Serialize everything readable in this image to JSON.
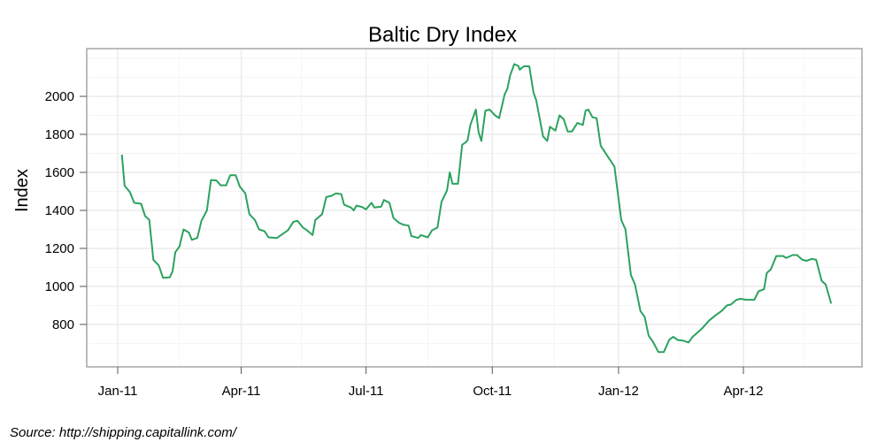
{
  "title": "Baltic Dry Index",
  "source_note": "Source: http://shipping.capitallink.com/",
  "colors": {
    "line": "#2ca25f",
    "frame": "#a6a6a6",
    "grid_major": "#ebebeb",
    "grid_minor": "#f5f5f5"
  },
  "chart_data": {
    "type": "line",
    "title": "Baltic Dry Index",
    "xlabel": "",
    "ylabel": "Index",
    "x_ticks": [
      "Jan-11",
      "Apr-11",
      "Jul-11",
      "Oct-11",
      "Jan-12",
      "Apr-12"
    ],
    "y_ticks": [
      800,
      1000,
      1200,
      1400,
      1600,
      1800,
      2000
    ],
    "ylim": [
      580,
      2250
    ],
    "xlim": [
      "2010-12-15",
      "2012-07-20"
    ],
    "grid": true,
    "legend": null,
    "series": [
      {
        "name": "Baltic Dry Index",
        "points": [
          [
            "2011-01-04",
            1693
          ],
          [
            "2011-01-06",
            1530
          ],
          [
            "2011-01-10",
            1495
          ],
          [
            "2011-01-13",
            1440
          ],
          [
            "2011-01-18",
            1435
          ],
          [
            "2011-01-21",
            1370
          ],
          [
            "2011-01-24",
            1350
          ],
          [
            "2011-01-27",
            1140
          ],
          [
            "2011-01-31",
            1110
          ],
          [
            "2011-02-03",
            1045
          ],
          [
            "2011-02-08",
            1048
          ],
          [
            "2011-02-10",
            1080
          ],
          [
            "2011-02-12",
            1180
          ],
          [
            "2011-02-15",
            1210
          ],
          [
            "2011-02-18",
            1300
          ],
          [
            "2011-02-22",
            1283
          ],
          [
            "2011-02-24",
            1245
          ],
          [
            "2011-02-28",
            1255
          ],
          [
            "2011-03-03",
            1345
          ],
          [
            "2011-03-07",
            1400
          ],
          [
            "2011-03-10",
            1560
          ],
          [
            "2011-03-14",
            1557
          ],
          [
            "2011-03-17",
            1532
          ],
          [
            "2011-03-21",
            1532
          ],
          [
            "2011-03-24",
            1585
          ],
          [
            "2011-03-28",
            1585
          ],
          [
            "2011-03-31",
            1525
          ],
          [
            "2011-04-04",
            1490
          ],
          [
            "2011-04-07",
            1380
          ],
          [
            "2011-04-11",
            1350
          ],
          [
            "2011-04-14",
            1300
          ],
          [
            "2011-04-18",
            1290
          ],
          [
            "2011-04-21",
            1258
          ],
          [
            "2011-04-27",
            1255
          ],
          [
            "2011-05-02",
            1280
          ],
          [
            "2011-05-05",
            1295
          ],
          [
            "2011-05-09",
            1340
          ],
          [
            "2011-05-12",
            1345
          ],
          [
            "2011-05-16",
            1310
          ],
          [
            "2011-05-19",
            1295
          ],
          [
            "2011-05-23",
            1270
          ],
          [
            "2011-05-25",
            1350
          ],
          [
            "2011-05-30",
            1380
          ],
          [
            "2011-06-02",
            1470
          ],
          [
            "2011-06-06",
            1477
          ],
          [
            "2011-06-09",
            1490
          ],
          [
            "2011-06-13",
            1485
          ],
          [
            "2011-06-15",
            1430
          ],
          [
            "2011-06-20",
            1415
          ],
          [
            "2011-06-22",
            1400
          ],
          [
            "2011-06-24",
            1425
          ],
          [
            "2011-06-28",
            1418
          ],
          [
            "2011-07-01",
            1405
          ],
          [
            "2011-07-05",
            1440
          ],
          [
            "2011-07-07",
            1415
          ],
          [
            "2011-07-12",
            1420
          ],
          [
            "2011-07-14",
            1455
          ],
          [
            "2011-07-18",
            1440
          ],
          [
            "2011-07-21",
            1360
          ],
          [
            "2011-07-25",
            1335
          ],
          [
            "2011-07-28",
            1325
          ],
          [
            "2011-08-01",
            1320
          ],
          [
            "2011-08-03",
            1265
          ],
          [
            "2011-08-08",
            1255
          ],
          [
            "2011-08-10",
            1270
          ],
          [
            "2011-08-15",
            1258
          ],
          [
            "2011-08-18",
            1295
          ],
          [
            "2011-08-22",
            1310
          ],
          [
            "2011-08-25",
            1445
          ],
          [
            "2011-08-29",
            1505
          ],
          [
            "2011-08-31",
            1600
          ],
          [
            "2011-09-02",
            1540
          ],
          [
            "2011-09-06",
            1540
          ],
          [
            "2011-09-09",
            1745
          ],
          [
            "2011-09-12",
            1760
          ],
          [
            "2011-09-13",
            1770
          ],
          [
            "2011-09-15",
            1850
          ],
          [
            "2011-09-19",
            1930
          ],
          [
            "2011-09-21",
            1810
          ],
          [
            "2011-09-23",
            1765
          ],
          [
            "2011-09-26",
            1925
          ],
          [
            "2011-09-29",
            1930
          ],
          [
            "2011-10-03",
            1900
          ],
          [
            "2011-10-06",
            1885
          ],
          [
            "2011-10-10",
            2010
          ],
          [
            "2011-10-12",
            2040
          ],
          [
            "2011-10-14",
            2110
          ],
          [
            "2011-10-17",
            2170
          ],
          [
            "2011-10-20",
            2160
          ],
          [
            "2011-10-21",
            2140
          ],
          [
            "2011-10-24",
            2158
          ],
          [
            "2011-10-28",
            2158
          ],
          [
            "2011-10-31",
            2020
          ],
          [
            "2011-11-02",
            1980
          ],
          [
            "2011-11-07",
            1790
          ],
          [
            "2011-11-10",
            1765
          ],
          [
            "2011-11-12",
            1840
          ],
          [
            "2011-11-16",
            1820
          ],
          [
            "2011-11-19",
            1900
          ],
          [
            "2011-11-22",
            1880
          ],
          [
            "2011-11-25",
            1815
          ],
          [
            "2011-11-28",
            1815
          ],
          [
            "2011-12-02",
            1860
          ],
          [
            "2011-12-06",
            1850
          ],
          [
            "2011-12-08",
            1925
          ],
          [
            "2011-12-10",
            1930
          ],
          [
            "2011-12-13",
            1890
          ],
          [
            "2011-12-16",
            1885
          ],
          [
            "2011-12-19",
            1740
          ],
          [
            "2011-12-29",
            1630
          ],
          [
            "2012-01-03",
            1350
          ],
          [
            "2012-01-06",
            1300
          ],
          [
            "2012-01-10",
            1060
          ],
          [
            "2012-01-13",
            1010
          ],
          [
            "2012-01-17",
            870
          ],
          [
            "2012-01-20",
            840
          ],
          [
            "2012-01-23",
            740
          ],
          [
            "2012-01-26",
            710
          ],
          [
            "2012-01-30",
            655
          ],
          [
            "2012-02-03",
            655
          ],
          [
            "2012-02-07",
            720
          ],
          [
            "2012-02-10",
            735
          ],
          [
            "2012-02-13",
            718
          ],
          [
            "2012-02-17",
            715
          ],
          [
            "2012-02-21",
            705
          ],
          [
            "2012-02-24",
            735
          ],
          [
            "2012-02-28",
            760
          ],
          [
            "2012-03-02",
            780
          ],
          [
            "2012-03-07",
            820
          ],
          [
            "2012-03-12",
            850
          ],
          [
            "2012-03-16",
            870
          ],
          [
            "2012-03-20",
            900
          ],
          [
            "2012-03-23",
            905
          ],
          [
            "2012-03-27",
            930
          ],
          [
            "2012-03-30",
            935
          ],
          [
            "2012-04-03",
            930
          ],
          [
            "2012-04-09",
            930
          ],
          [
            "2012-04-12",
            975
          ],
          [
            "2012-04-16",
            985
          ],
          [
            "2012-04-18",
            1070
          ],
          [
            "2012-04-21",
            1090
          ],
          [
            "2012-04-25",
            1160
          ],
          [
            "2012-04-30",
            1160
          ],
          [
            "2012-05-02",
            1150
          ],
          [
            "2012-05-07",
            1165
          ],
          [
            "2012-05-10",
            1165
          ],
          [
            "2012-05-14",
            1140
          ],
          [
            "2012-05-17",
            1135
          ],
          [
            "2012-05-21",
            1145
          ],
          [
            "2012-05-24",
            1140
          ],
          [
            "2012-05-28",
            1030
          ],
          [
            "2012-05-31",
            1010
          ],
          [
            "2012-06-04",
            910
          ]
        ]
      }
    ]
  }
}
